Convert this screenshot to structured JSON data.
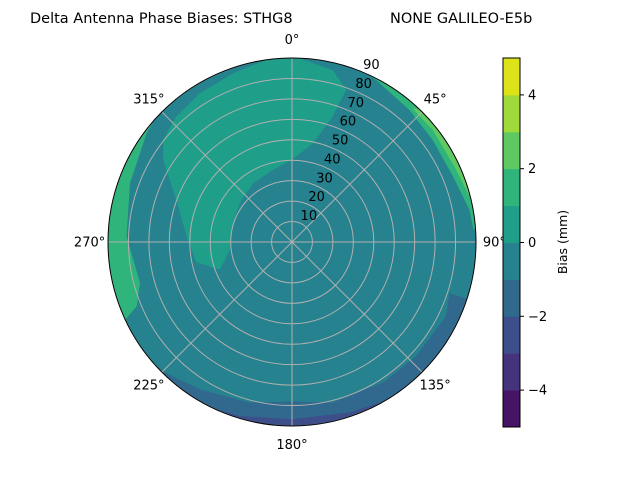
{
  "chart_data": {
    "type": "polar-contour",
    "title_left": "Delta Antenna Phase Biases: STHG8",
    "title_right": "NONE GALILEO-E5b",
    "angular_direction": "clockwise",
    "zero_location": "top",
    "angular_ticks": [
      "0°",
      "45°",
      "90°",
      "135°",
      "180°",
      "225°",
      "270°",
      "315°"
    ],
    "angular_tick_values": [
      0,
      45,
      90,
      135,
      180,
      225,
      270,
      315
    ],
    "radial_ticks": [
      "10",
      "20",
      "30",
      "40",
      "50",
      "60",
      "70",
      "80",
      "90"
    ],
    "radial_tick_values": [
      10,
      20,
      30,
      40,
      50,
      60,
      70,
      80,
      90
    ],
    "radial_range": [
      0,
      90
    ],
    "grid": true,
    "colormap": "viridis",
    "levels": [
      -5,
      -4,
      -3,
      -2,
      -1,
      0,
      1,
      2,
      3,
      4,
      5
    ],
    "level_colors": [
      "#471365",
      "#46337e",
      "#3d4e8a",
      "#31688e",
      "#26828e",
      "#1f9e89",
      "#2fb47c",
      "#5ec962",
      "#9fda3a",
      "#dde318"
    ],
    "colorbar": {
      "label": "Bias (mm)",
      "ticks": [
        "−4",
        "−2",
        "0",
        "2",
        "4"
      ],
      "tick_values": [
        -4,
        -2,
        0,
        2,
        4
      ],
      "range": [
        -5,
        5
      ],
      "placement": "right"
    },
    "background_band": [
      0,
      1
    ],
    "regions": [
      {
        "band": [
          -1,
          0
        ],
        "points": [
          [
            2,
            90
          ],
          [
            13.4,
            86.4
          ],
          [
            19.6,
            79
          ],
          [
            18,
            64.6
          ],
          [
            12,
            49.4
          ],
          [
            0,
            40.2
          ],
          [
            345.3,
            36.5
          ],
          [
            326.5,
            34.5
          ],
          [
            307,
            31.9
          ],
          [
            288,
            30.3
          ],
          [
            263,
            30.6
          ],
          [
            249,
            37.8
          ],
          [
            258,
            47.8
          ],
          [
            273,
            51.6
          ],
          [
            290,
            60.2
          ],
          [
            302.5,
            74.7
          ],
          [
            308.4,
            80.4
          ],
          [
            317,
            83.4
          ],
          [
            328,
            85.6
          ],
          [
            340.7,
            87.4
          ],
          [
            352,
            90
          ]
        ]
      },
      {
        "band": [
          -1,
          0
        ],
        "points": [
          [
            0,
            0
          ],
          [
            303,
            16.9
          ],
          [
            327,
            22.8
          ],
          [
            354.5,
            29
          ],
          [
            379,
            31.4
          ],
          [
            402.3,
            34.5
          ],
          [
            421.4,
            43.2
          ],
          [
            437,
            49
          ],
          [
            454,
            54.3
          ],
          [
            459.3,
            63.2
          ],
          [
            463,
            74
          ],
          [
            462,
            87
          ],
          [
            465,
            90
          ],
          [
            597,
            90
          ],
          [
            593,
            87
          ],
          [
            579,
            84.5
          ],
          [
            561,
            79
          ],
          [
            540,
            76.2
          ],
          [
            524.8,
            76.4
          ],
          [
            511.6,
            76.4
          ],
          [
            501.5,
            71.3
          ],
          [
            497,
            65.2
          ],
          [
            495,
            49
          ],
          [
            485,
            40.4
          ],
          [
            490,
            26
          ],
          [
            495,
            9.9
          ]
        ]
      },
      {
        "band": [
          -2,
          -1
        ],
        "points": [
          [
            108,
            81
          ],
          [
            115.7,
            83.6
          ],
          [
            132.6,
            82.5
          ],
          [
            147,
            81.9
          ],
          [
            165.7,
            81
          ],
          [
            180,
            78
          ],
          [
            194.7,
            81.2
          ],
          [
            212,
            85
          ],
          [
            226,
            90
          ],
          [
            108,
            90
          ]
        ]
      },
      {
        "band": [
          -3,
          -2
        ],
        "points": [
          [
            150,
            90
          ],
          [
            161.4,
            88
          ],
          [
            180,
            86.7
          ],
          [
            196.7,
            88.9
          ],
          [
            205,
            90
          ]
        ]
      },
      {
        "band": [
          1,
          2
        ],
        "points": [
          [
            312,
            90
          ],
          [
            306.8,
            88.8
          ],
          [
            290,
            84.3
          ],
          [
            272,
            81
          ],
          [
            254.9,
            77
          ],
          [
            247.5,
            82.2
          ],
          [
            245,
            90
          ]
        ]
      },
      {
        "band": [
          1,
          2
        ],
        "points": [
          [
            25,
            90
          ],
          [
            27.5,
            89.3
          ],
          [
            41.6,
            86.4
          ],
          [
            54,
            85
          ],
          [
            67.8,
            85
          ],
          [
            79.7,
            88.2
          ],
          [
            86,
            89
          ],
          [
            86,
            90
          ]
        ]
      },
      {
        "band": [
          2,
          3
        ],
        "points": [
          [
            44,
            90
          ],
          [
            42,
            88
          ],
          [
            51.5,
            88
          ],
          [
            66.2,
            87.7
          ],
          [
            77,
            90
          ]
        ]
      }
    ]
  }
}
